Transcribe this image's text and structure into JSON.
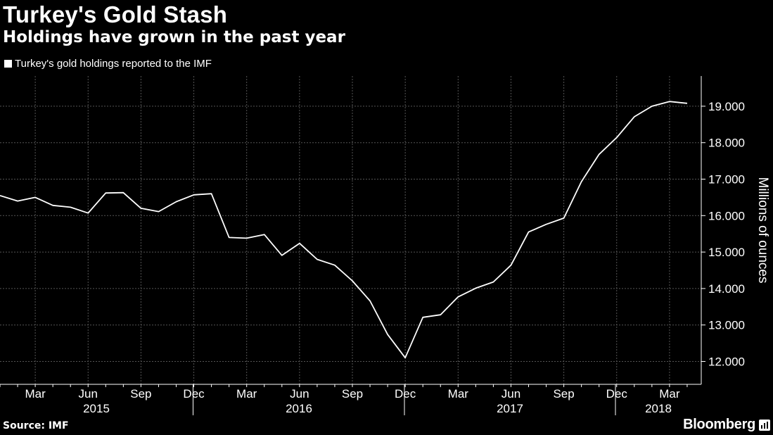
{
  "title": "Turkey's Gold Stash",
  "subtitle": "Holdings have grown in the past year",
  "legend_label": "Turkey's gold holdings reported to the IMF",
  "source": "Source: IMF",
  "brand": "Bloomberg",
  "colors": {
    "background": "#000000",
    "line": "#ffffff",
    "grid": "#555555",
    "text": "#ffffff"
  },
  "chart_data": {
    "type": "line",
    "title": "Turkey's Gold Stash",
    "subtitle": "Holdings have grown in the past year",
    "ylabel": "Millions of ounces",
    "xlabel": "",
    "ylim": [
      11.5,
      19.8
    ],
    "yticks": [
      12,
      13,
      14,
      15,
      16,
      17,
      18,
      19
    ],
    "ytick_labels": [
      "12.000",
      "13.000",
      "14.000",
      "15.000",
      "16.000",
      "17.000",
      "18.000",
      "19.000"
    ],
    "y_axis_side": "right",
    "grid": true,
    "legend_position": "top-left",
    "x_month_ticks": [
      {
        "date": "2015-03",
        "label": "Mar"
      },
      {
        "date": "2015-06",
        "label": "Jun"
      },
      {
        "date": "2015-09",
        "label": "Sep"
      },
      {
        "date": "2015-12",
        "label": "Dec"
      },
      {
        "date": "2016-03",
        "label": "Mar"
      },
      {
        "date": "2016-06",
        "label": "Jun"
      },
      {
        "date": "2016-09",
        "label": "Sep"
      },
      {
        "date": "2016-12",
        "label": "Dec"
      },
      {
        "date": "2017-03",
        "label": "Mar"
      },
      {
        "date": "2017-06",
        "label": "Jun"
      },
      {
        "date": "2017-09",
        "label": "Sep"
      },
      {
        "date": "2017-12",
        "label": "Dec"
      },
      {
        "date": "2018-03",
        "label": "Mar"
      }
    ],
    "x_year_labels": [
      "2015",
      "2016",
      "2017",
      "2018"
    ],
    "series": [
      {
        "name": "Turkey's gold holdings reported to the IMF",
        "x": [
          "2015-01",
          "2015-02",
          "2015-03",
          "2015-04",
          "2015-05",
          "2015-06",
          "2015-07",
          "2015-08",
          "2015-09",
          "2015-10",
          "2015-11",
          "2015-12",
          "2016-01",
          "2016-02",
          "2016-03",
          "2016-04",
          "2016-05",
          "2016-06",
          "2016-07",
          "2016-08",
          "2016-09",
          "2016-10",
          "2016-11",
          "2016-12",
          "2017-01",
          "2017-02",
          "2017-03",
          "2017-04",
          "2017-05",
          "2017-06",
          "2017-07",
          "2017-08",
          "2017-09",
          "2017-10",
          "2017-11",
          "2017-12",
          "2018-01",
          "2018-02",
          "2018-03",
          "2018-04"
        ],
        "values": [
          16.55,
          16.4,
          16.5,
          16.28,
          16.23,
          16.07,
          16.62,
          16.63,
          16.2,
          16.11,
          16.38,
          16.57,
          16.6,
          15.4,
          15.38,
          15.48,
          14.91,
          15.24,
          14.8,
          14.64,
          14.21,
          13.66,
          12.74,
          12.1,
          13.21,
          13.28,
          13.77,
          14.01,
          14.18,
          14.64,
          15.55,
          15.76,
          15.93,
          16.93,
          17.68,
          18.14,
          18.71,
          19.0,
          19.13,
          19.08
        ]
      }
    ]
  }
}
